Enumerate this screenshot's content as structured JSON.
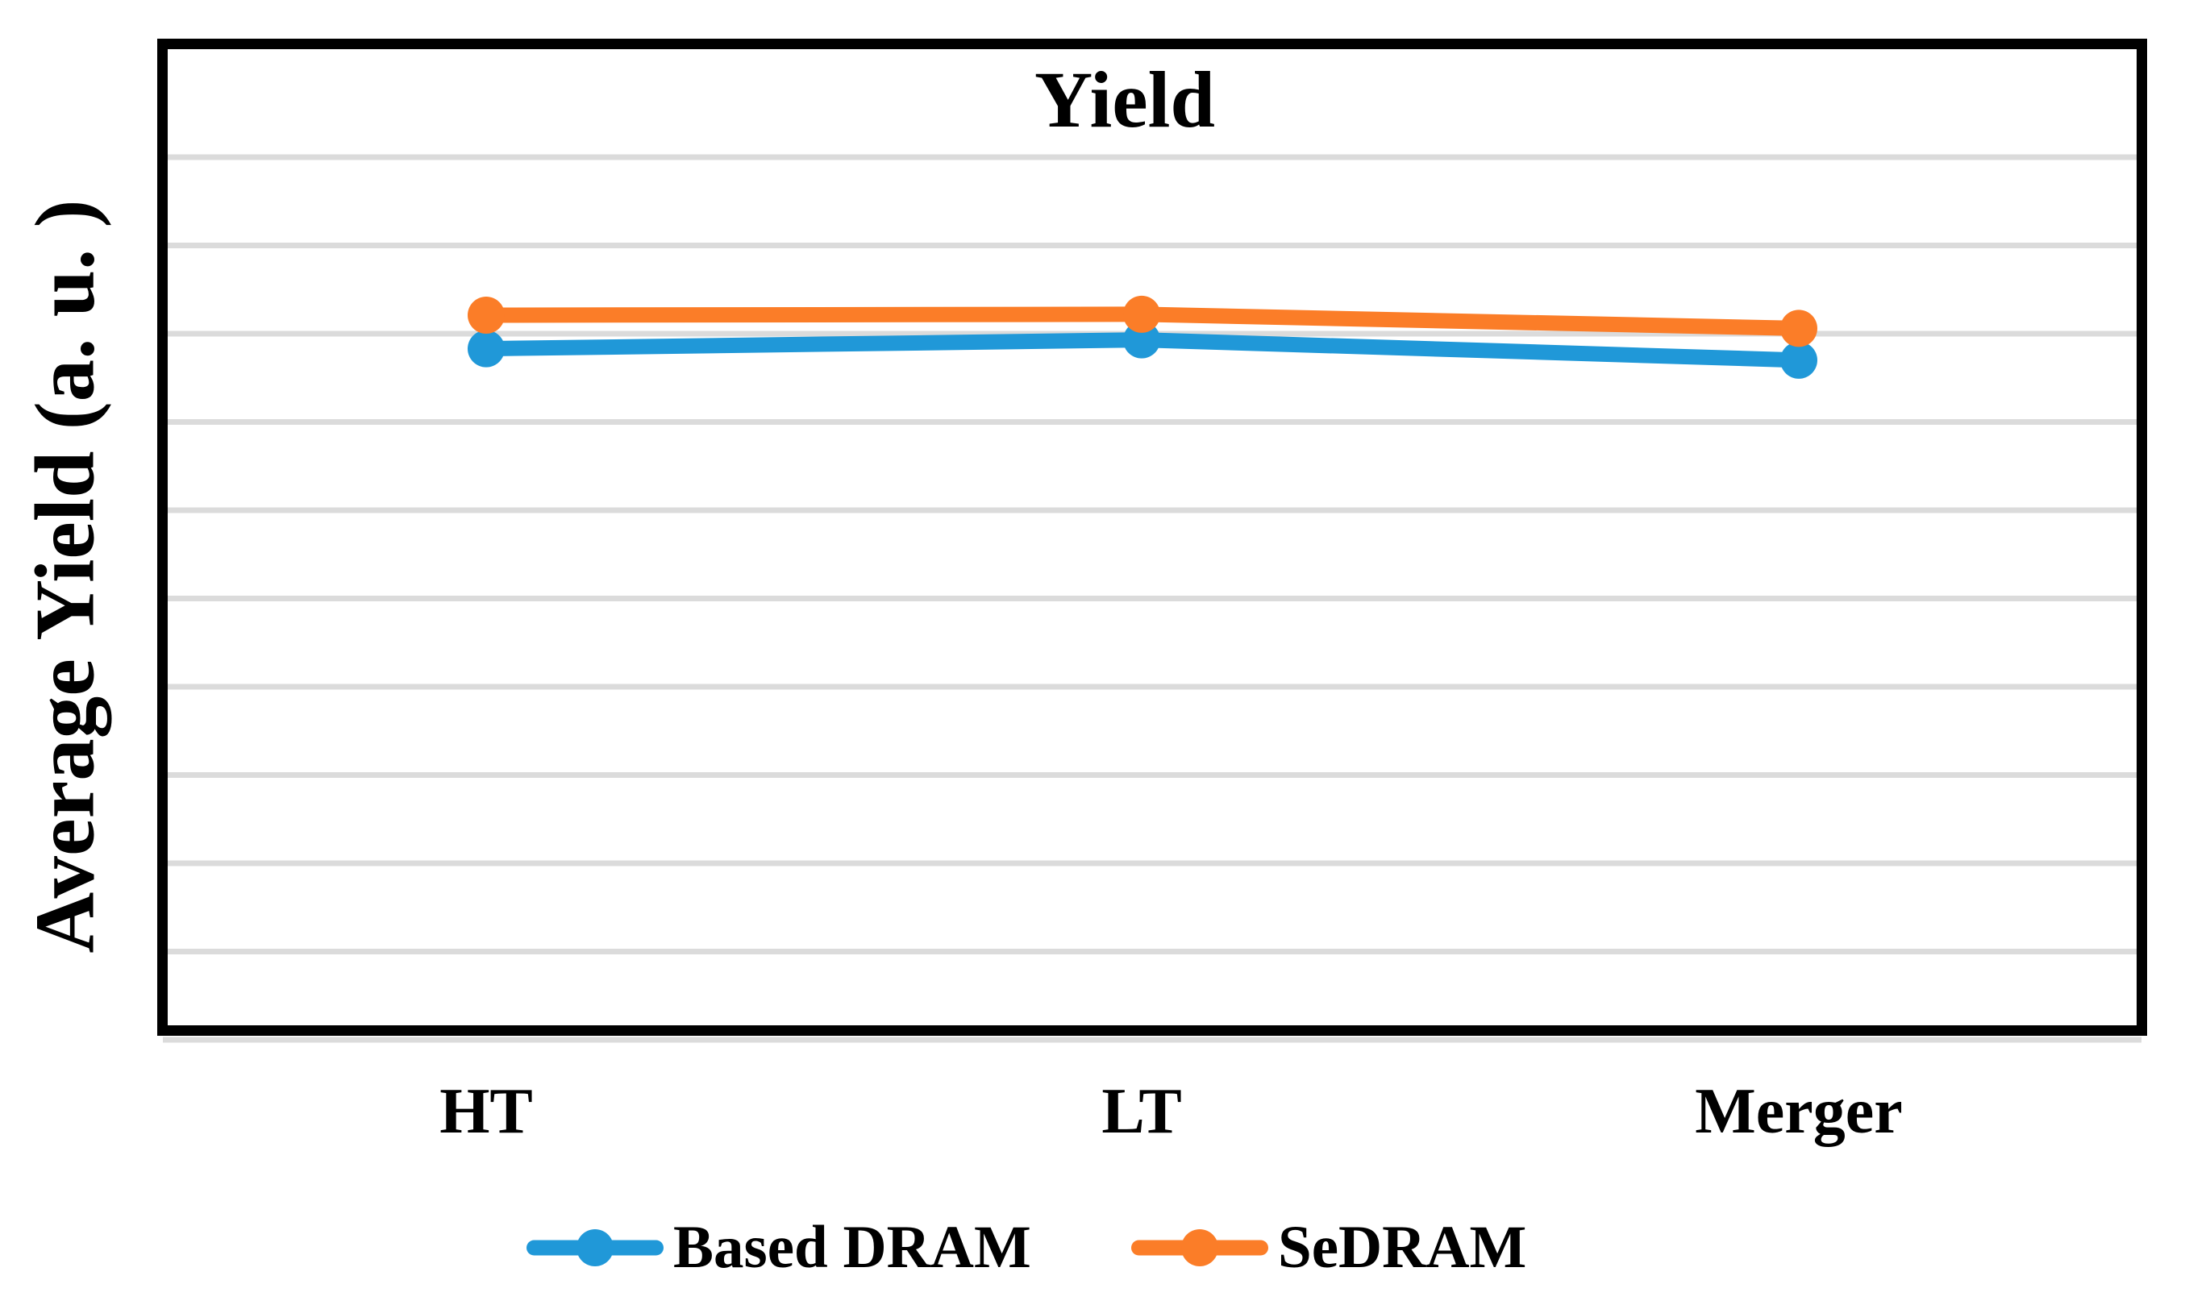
{
  "chart_data": {
    "type": "line",
    "title": "Yield",
    "ylabel": "Average Yield (a. u. )",
    "xlabel": "",
    "categories": [
      "HT",
      "LT",
      "Merger"
    ],
    "series": [
      {
        "name": "Based DRAM",
        "color": "#2098D8",
        "values": [
          0.783,
          0.793,
          0.77
        ]
      },
      {
        "name": "SeDRAM",
        "color": "#FB7D28",
        "values": [
          0.821,
          0.822,
          0.806
        ]
      }
    ],
    "ylim": [
      0,
      1.121
    ],
    "y_major_gridline_unit": 0.1,
    "y_tick_labels": "none",
    "x_tick_labels": [
      "HT",
      "LT",
      "Merger"
    ],
    "grid": "horizontal-only",
    "legend_position": "bottom",
    "units": "a.u."
  },
  "colors": {
    "based_dram": "#2098D8",
    "sedram": "#FB7D28",
    "gridline": "#DBDBDB",
    "frame": "#000000",
    "background": "#FFFFFF",
    "text": "#000000"
  }
}
